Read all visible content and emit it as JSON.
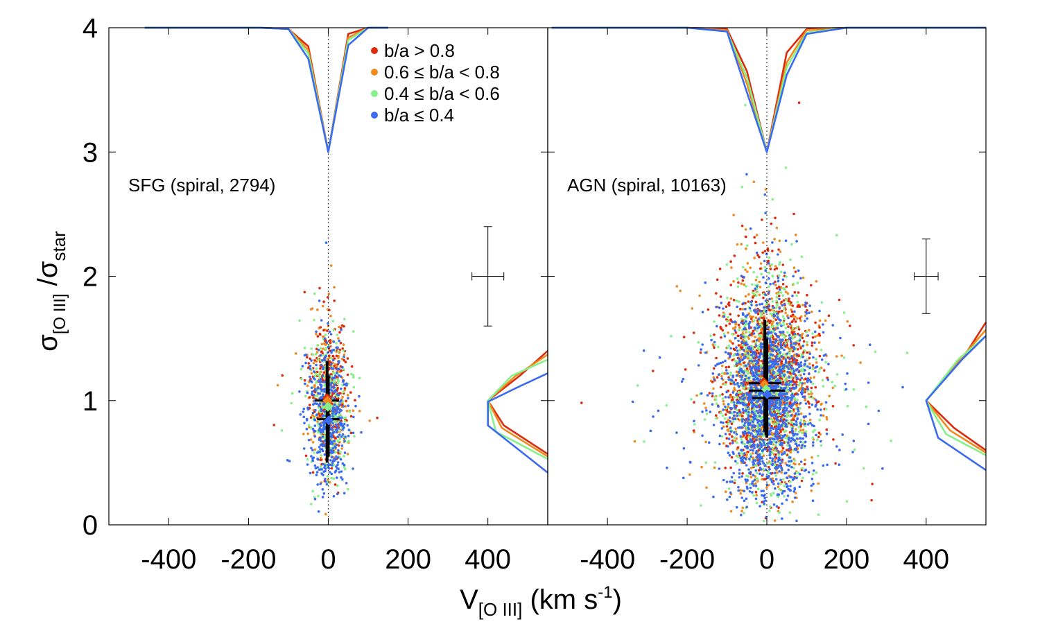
{
  "chart_data": {
    "type": "scatter",
    "x_label": "V",
    "x_label_sub": "[O III]",
    "x_label_units_pre": " (km s",
    "x_label_units_sup": "-1",
    "x_label_units_post": ")",
    "y_label_num": "σ",
    "y_label_num_sub": "[O III]",
    "y_label_sep": " /",
    "y_label_den": "σ",
    "y_label_den_sub": "star",
    "xlim": [
      -550,
      550
    ],
    "ylim": [
      0,
      4
    ],
    "x_ticks": [
      -400,
      -200,
      0,
      200,
      400
    ],
    "x_tick_labels": [
      "-400",
      "-200",
      "0",
      "200",
      "400"
    ],
    "y_ticks": [
      0,
      1,
      2,
      3,
      4
    ],
    "y_tick_labels": [
      "0",
      "1",
      "2",
      "3",
      "4"
    ],
    "legend": [
      {
        "key": "gt08",
        "label": "b/a > 0.8",
        "color": "#dd2a0c"
      },
      {
        "key": "06_08",
        "label": "0.6 ≤ b/a < 0.8",
        "color": "#ee8a1e"
      },
      {
        "key": "04_06",
        "label": "0.4 ≤ b/a < 0.6",
        "color": "#86f08a"
      },
      {
        "key": "le04",
        "label": "b/a ≤ 0.4",
        "color": "#3a6af0"
      }
    ],
    "panels": [
      {
        "name": "SFG",
        "label": "SFG (spiral, 2794)",
        "scatter": {
          "count": 2794,
          "x_center": 0,
          "x_sigma": 24,
          "y_center": 0.95,
          "y_sigma": 0.28
        },
        "error_bar": {
          "x": 400,
          "y": 2.0,
          "xerr": 40,
          "yerr_low": 0.4,
          "yerr_high": 0.4
        },
        "medians": [
          {
            "key": "gt08",
            "x": -3,
            "y": 1.02
          },
          {
            "key": "06_08",
            "x": -2,
            "y": 1.0
          },
          {
            "key": "04_06",
            "x": -1,
            "y": 0.95
          },
          {
            "key": "le04",
            "x": 1,
            "y": 0.84
          }
        ],
        "median_bars": [
          {
            "x": -3,
            "y": 1.0,
            "xerr": 30,
            "ylo": 0.5,
            "yhi": 1.32
          },
          {
            "x": 0,
            "y": 0.85,
            "xerr": 28,
            "ylo": 0.55,
            "yhi": 1.2
          }
        ],
        "top_histograms": [
          {
            "key": "gt08",
            "x": [
              -460,
              -170,
              -100,
              -50,
              0,
              50,
              100,
              150
            ],
            "y": [
              4.0,
              4.0,
              3.99,
              3.85,
              3.0,
              3.95,
              4.0,
              4.0
            ]
          },
          {
            "key": "06_08",
            "x": [
              -460,
              -170,
              -100,
              -50,
              0,
              50,
              100,
              150
            ],
            "y": [
              4.0,
              4.0,
              3.99,
              3.82,
              3.0,
              3.92,
              4.0,
              4.0
            ]
          },
          {
            "key": "04_06",
            "x": [
              -460,
              -170,
              -100,
              -50,
              0,
              50,
              100,
              150
            ],
            "y": [
              4.0,
              4.0,
              3.99,
              3.79,
              3.0,
              3.9,
              4.0,
              4.0
            ]
          },
          {
            "key": "le04",
            "x": [
              -460,
              -170,
              -100,
              -50,
              0,
              50,
              100,
              150
            ],
            "y": [
              4.0,
              4.0,
              3.99,
              3.75,
              3.0,
              3.86,
              4.0,
              4.0
            ]
          }
        ],
        "right_histograms": [
          {
            "key": "gt08",
            "x": [
              550,
              480,
              400,
              440,
              550
            ],
            "y": [
              1.4,
              1.2,
              1.0,
              0.8,
              0.57
            ]
          },
          {
            "key": "06_08",
            "x": [
              550,
              470,
              400,
              435,
              550
            ],
            "y": [
              1.37,
              1.2,
              1.0,
              0.78,
              0.55
            ]
          },
          {
            "key": "04_06",
            "x": [
              550,
              460,
              400,
              420,
              550
            ],
            "y": [
              1.33,
              1.2,
              1.0,
              0.75,
              0.53
            ]
          },
          {
            "key": "le04",
            "x": [
              550,
              470,
              400,
              400,
              550
            ],
            "y": [
              1.22,
              1.1,
              0.99,
              0.8,
              0.42
            ]
          }
        ]
      },
      {
        "name": "AGN",
        "label": "AGN (spiral, 10163)",
        "scatter": {
          "count": 10163,
          "x_center": 0,
          "x_sigma": 55,
          "y_center": 1.1,
          "y_sigma": 0.4
        },
        "error_bar": {
          "x": 400,
          "y": 2.0,
          "xerr": 30,
          "yerr_low": 0.3,
          "yerr_high": 0.3
        },
        "medians": [
          {
            "key": "gt08",
            "x": -8,
            "y": 1.15
          },
          {
            "key": "06_08",
            "x": -6,
            "y": 1.13
          },
          {
            "key": "04_06",
            "x": -2,
            "y": 1.09
          },
          {
            "key": "le04",
            "x": 1,
            "y": 1.05
          }
        ],
        "median_bars": [
          {
            "x": -5,
            "y": 1.14,
            "xerr": 40,
            "ylo": 0.75,
            "yhi": 1.65
          },
          {
            "x": 0,
            "y": 1.08,
            "xerr": 45,
            "ylo": 0.7,
            "yhi": 1.5
          },
          {
            "x": -2,
            "y": 1.02,
            "xerr": 35,
            "ylo": 0.72,
            "yhi": 1.45
          }
        ],
        "top_histograms": [
          {
            "key": "gt08",
            "x": [
              -540,
              -200,
              -100,
              -50,
              0,
              50,
              100,
              200,
              400,
              550
            ],
            "y": [
              4.0,
              4.0,
              3.99,
              3.65,
              3.0,
              3.8,
              3.99,
              4.0,
              4.0,
              4.0
            ]
          },
          {
            "key": "06_08",
            "x": [
              -540,
              -200,
              -100,
              -50,
              0,
              50,
              100,
              200,
              400,
              550
            ],
            "y": [
              4.0,
              4.0,
              3.98,
              3.55,
              3.0,
              3.72,
              3.98,
              4.0,
              4.0,
              4.0
            ]
          },
          {
            "key": "04_06",
            "x": [
              -540,
              -200,
              -100,
              -50,
              0,
              50,
              100,
              200,
              400,
              550
            ],
            "y": [
              4.0,
              4.0,
              3.97,
              3.6,
              3.0,
              3.68,
              3.96,
              4.0,
              4.0,
              4.0
            ]
          },
          {
            "key": "le04",
            "x": [
              -540,
              -200,
              -100,
              -50,
              0,
              50,
              100,
              200,
              400,
              550
            ],
            "y": [
              4.0,
              4.0,
              3.97,
              3.48,
              3.0,
              3.62,
              3.95,
              4.0,
              4.0,
              4.0
            ]
          }
        ],
        "right_histograms": [
          {
            "key": "gt08",
            "x": [
              550,
              500,
              400,
              470,
              550
            ],
            "y": [
              1.63,
              1.38,
              1.0,
              0.78,
              0.6
            ]
          },
          {
            "key": "06_08",
            "x": [
              550,
              490,
              400,
              460,
              550
            ],
            "y": [
              1.57,
              1.35,
              1.0,
              0.76,
              0.58
            ]
          },
          {
            "key": "04_06",
            "x": [
              550,
              480,
              400,
              450,
              550
            ],
            "y": [
              1.52,
              1.33,
              1.0,
              0.73,
              0.56
            ]
          },
          {
            "key": "le04",
            "x": [
              550,
              490,
              400,
              430,
              550
            ],
            "y": [
              1.52,
              1.33,
              1.0,
              0.7,
              0.44
            ]
          }
        ]
      }
    ]
  }
}
